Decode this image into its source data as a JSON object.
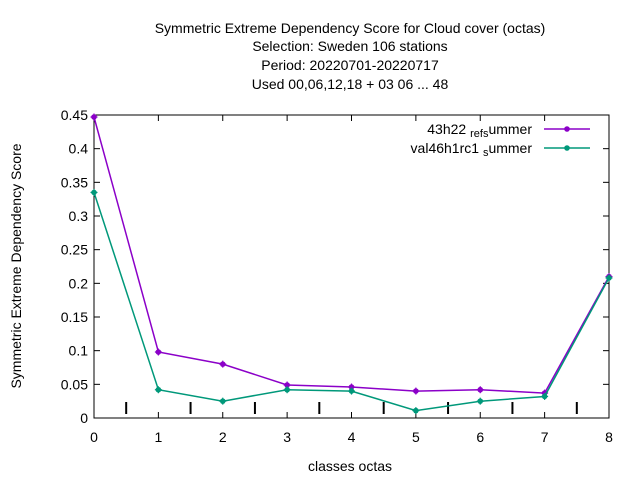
{
  "chart_data": {
    "type": "line",
    "title_lines": [
      "Symmetric Extreme Dependency Score  for Cloud cover (octas)",
      "Selection: Sweden    106 stations",
      "Period: 20220701-20220717",
      "Used  00,06,12,18  + 03 06 ... 48"
    ],
    "xlabel": "classes octas",
    "ylabel": "Symmetric Extreme Dependency Score",
    "xlim": [
      0,
      8
    ],
    "ylim": [
      0,
      0.45
    ],
    "x_ticks": [
      0,
      1,
      2,
      3,
      4,
      5,
      6,
      7,
      8
    ],
    "y_ticks": [
      0,
      0.05,
      0.1,
      0.15,
      0.2,
      0.25,
      0.3,
      0.35,
      0.4,
      0.45
    ],
    "y_tick_labels": [
      "0",
      "0.05",
      "0.1",
      "0.15",
      "0.2",
      "0.25",
      "0.3",
      "0.35",
      "0.4",
      "0.45"
    ],
    "x_tick_labels": [
      "0",
      "1",
      "2",
      "3",
      "4",
      "5",
      "6",
      "7",
      "8"
    ],
    "minor_x_ticks": [
      0.5,
      1.5,
      2.5,
      3.5,
      4.5,
      5.5,
      6.5,
      7.5
    ],
    "grid": false,
    "legend_position": "top-right",
    "series": [
      {
        "name_main": "43h22",
        "name_sub": "ref",
        "name_tail": "ummer",
        "name_sub2": "s",
        "color": "#8b00c8",
        "x": [
          0,
          1,
          2,
          3,
          4,
          5,
          6,
          7,
          8
        ],
        "values": [
          0.447,
          0.098,
          0.08,
          0.049,
          0.046,
          0.04,
          0.042,
          0.037,
          0.21
        ]
      },
      {
        "name_main": "val46h1rc1",
        "name_sub": "",
        "name_tail": "ummer",
        "name_sub2": "s",
        "color": "#00987a",
        "x": [
          0,
          1,
          2,
          3,
          4,
          5,
          6,
          7,
          8
        ],
        "values": [
          0.335,
          0.042,
          0.025,
          0.042,
          0.04,
          0.011,
          0.025,
          0.032,
          0.208
        ]
      }
    ]
  }
}
